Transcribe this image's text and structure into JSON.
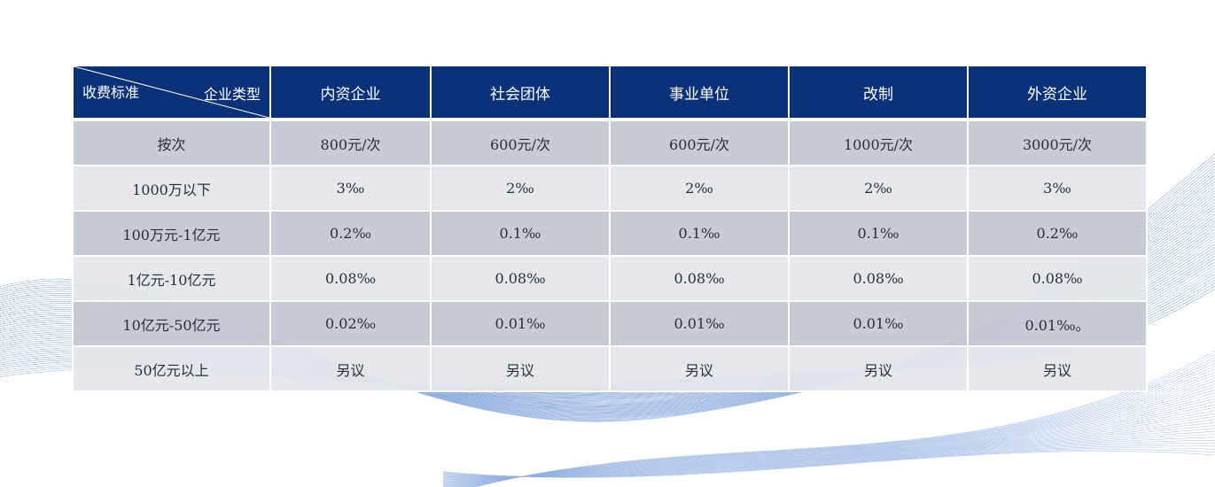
{
  "table": {
    "corner_left": "收费标准",
    "corner_right": "企业类型",
    "columns": [
      "内资企业",
      "社会团体",
      "事业单位",
      "改制",
      "外资企业"
    ],
    "rows": [
      {
        "label": "按次",
        "cells": [
          "800元/次",
          "600元/次",
          "600元/次",
          "1000元/次",
          "3000元/次"
        ]
      },
      {
        "label": "1000万以下",
        "cells": [
          "3‰",
          "2‰",
          "2‰",
          "2‰",
          "3‰"
        ]
      },
      {
        "label": "100万元-1亿元",
        "cells": [
          "0.2‰",
          "0.1‰",
          "0.1‰",
          "0.1‰",
          "0.2‰"
        ]
      },
      {
        "label": "1亿元-10亿元",
        "cells": [
          "0.08‰",
          "0.08‰",
          "0.08‰",
          "0.08‰",
          "0.08‰"
        ]
      },
      {
        "label": "10亿元-50亿元",
        "cells": [
          "0.02‰",
          "0.01‰",
          "0.01‰",
          "0.01‰",
          "0.01‰。"
        ]
      },
      {
        "label": "50亿元以上",
        "cells": [
          "另议",
          "另议",
          "另议",
          "另议",
          "另议"
        ]
      }
    ]
  },
  "colors": {
    "header_bg": "#0b3278",
    "row_dark": "#c4c8d2",
    "row_light": "#e4e6eb",
    "wave": "#3b6fc4"
  }
}
